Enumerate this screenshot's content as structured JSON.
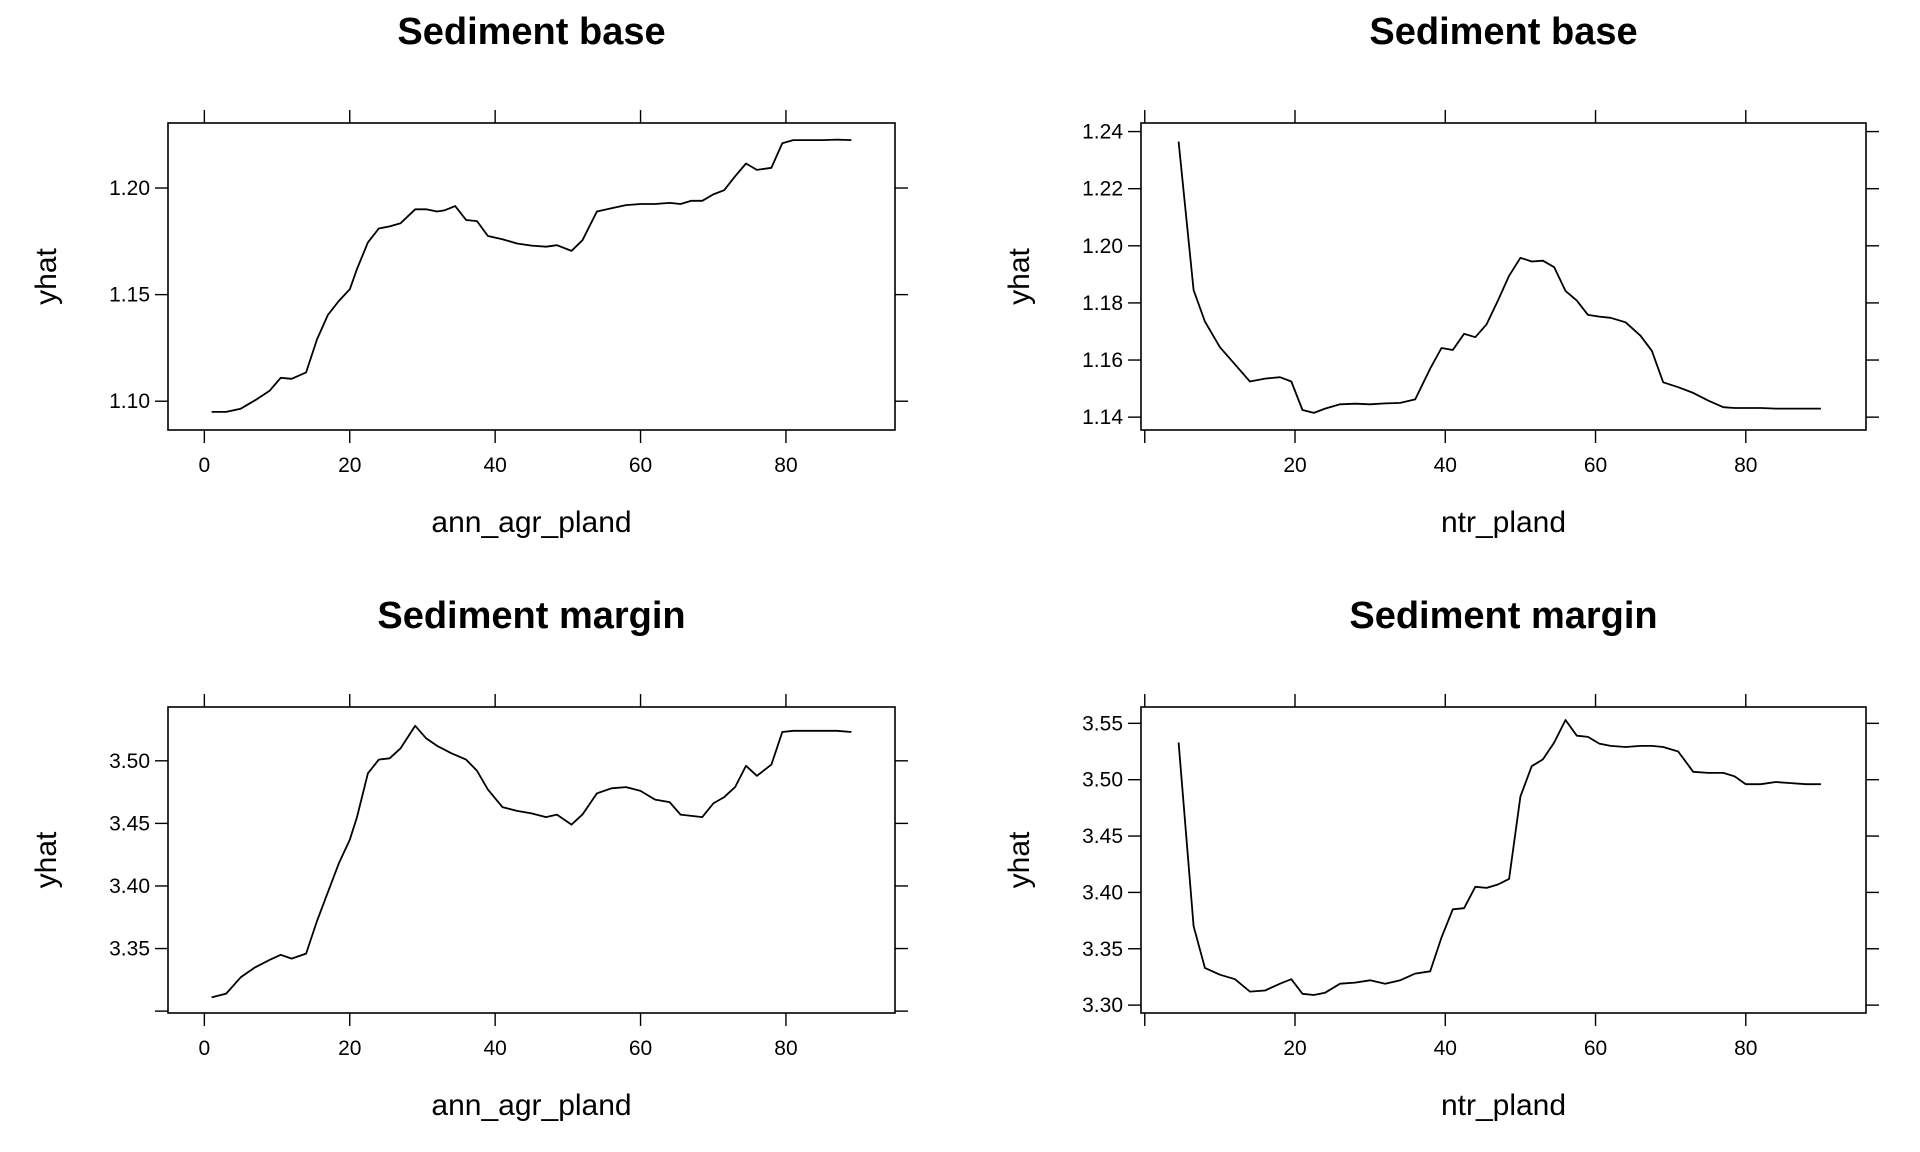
{
  "chart_data": [
    {
      "type": "line",
      "title": "Sediment base",
      "xlabel": "ann_agr_pland",
      "ylabel": "yhat",
      "xlim": [
        -5,
        95
      ],
      "ylim": [
        1.0865,
        1.2305
      ],
      "xticks": [
        0,
        20,
        40,
        60,
        80
      ],
      "xtick_labels": [
        "0",
        "20",
        "40",
        "60",
        "80"
      ],
      "yticks": [
        1.1,
        1.15,
        1.2
      ],
      "ytick_labels": [
        "1.10",
        "1.15",
        "1.20"
      ],
      "grid": false,
      "x": [
        1,
        3,
        5,
        7,
        9,
        10.5,
        12,
        14,
        15.5,
        17,
        18.5,
        20,
        21,
        22.5,
        24,
        25.5,
        27,
        29,
        30.5,
        32,
        33,
        34.5,
        36,
        37.5,
        39,
        41,
        43,
        45,
        47,
        48.5,
        50.5,
        52,
        54,
        56,
        58,
        60,
        62,
        64,
        65.5,
        67,
        68.5,
        70,
        71.5,
        73,
        74.5,
        76,
        78,
        79.5,
        81,
        83,
        85,
        87,
        89
      ],
      "y": [
        1.095,
        1.095,
        1.0965,
        1.1005,
        1.105,
        1.111,
        1.1105,
        1.1135,
        1.129,
        1.1405,
        1.147,
        1.1525,
        1.162,
        1.1745,
        1.181,
        1.182,
        1.1835,
        1.19,
        1.19,
        1.189,
        1.1895,
        1.1915,
        1.185,
        1.1845,
        1.1775,
        1.176,
        1.174,
        1.173,
        1.1725,
        1.1732,
        1.1705,
        1.1755,
        1.189,
        1.1905,
        1.192,
        1.1925,
        1.1925,
        1.193,
        1.1925,
        1.194,
        1.194,
        1.197,
        1.199,
        1.2055,
        1.2115,
        1.2085,
        1.2095,
        1.221,
        1.2225,
        1.2225,
        1.2225,
        1.2227,
        1.2225
      ]
    },
    {
      "type": "line",
      "title": "Sediment base",
      "xlabel": "ntr_pland",
      "ylabel": "yhat",
      "xlim": [
        -0.5,
        96
      ],
      "ylim": [
        1.1355,
        1.243
      ],
      "xticks": [
        20,
        40,
        60,
        80
      ],
      "xtick_labels": [
        "20",
        "40",
        "60",
        "80"
      ],
      "yticks": [
        1.14,
        1.16,
        1.18,
        1.2,
        1.22,
        1.24
      ],
      "ytick_labels": [
        "1.14",
        "1.16",
        "1.18",
        "1.20",
        "1.22",
        "1.24"
      ],
      "extra_ticks": [
        0
      ],
      "grid": false,
      "x": [
        4.5,
        6.5,
        8,
        10,
        12,
        14,
        16,
        18,
        19.5,
        21,
        22.5,
        24,
        26,
        28,
        30,
        32,
        34,
        36,
        38,
        39.5,
        41,
        42.5,
        44,
        45.5,
        47,
        48.5,
        50,
        51.5,
        53,
        54.5,
        56,
        57.5,
        59,
        60.5,
        62,
        64,
        66,
        67.5,
        69,
        71,
        73,
        75,
        77,
        78.5,
        80,
        82,
        84,
        86,
        88,
        90
      ],
      "y": [
        1.2365,
        1.1845,
        1.1735,
        1.1645,
        1.1585,
        1.1525,
        1.1535,
        1.154,
        1.1525,
        1.1425,
        1.1415,
        1.143,
        1.1445,
        1.1447,
        1.1445,
        1.1448,
        1.145,
        1.1462,
        1.157,
        1.1642,
        1.1635,
        1.1692,
        1.168,
        1.1725,
        1.1808,
        1.1895,
        1.1958,
        1.1945,
        1.1948,
        1.1925,
        1.1842,
        1.1808,
        1.1758,
        1.1752,
        1.1748,
        1.1732,
        1.1685,
        1.1632,
        1.1522,
        1.1505,
        1.1485,
        1.1458,
        1.1435,
        1.1432,
        1.1432,
        1.1432,
        1.143,
        1.143,
        1.143,
        1.143
      ]
    },
    {
      "type": "line",
      "title": "Sediment margin",
      "xlabel": "ann_agr_pland",
      "ylabel": "yhat",
      "xlim": [
        -5,
        95
      ],
      "ylim": [
        3.2985,
        3.543
      ],
      "xticks": [
        0,
        20,
        40,
        60,
        80
      ],
      "xtick_labels": [
        "0",
        "20",
        "40",
        "60",
        "80"
      ],
      "yticks": [
        3.35,
        3.4,
        3.45,
        3.5
      ],
      "ytick_labels": [
        "3.35",
        "3.40",
        "3.45",
        "3.50"
      ],
      "extra_ticks": [
        3.3
      ],
      "grid": false,
      "x": [
        1,
        3,
        5,
        7,
        9,
        10.5,
        12,
        14,
        15.5,
        17,
        18.5,
        20,
        21,
        22.5,
        24,
        25.5,
        27,
        29,
        30.5,
        32,
        34,
        36,
        37.5,
        39,
        41,
        43,
        45,
        47,
        48.5,
        50.5,
        52,
        54,
        56,
        58,
        60,
        62,
        64,
        65.5,
        67,
        68.5,
        70,
        71.5,
        73,
        74.5,
        76,
        78,
        79.5,
        81,
        83,
        85,
        87,
        89
      ],
      "y": [
        3.311,
        3.314,
        3.327,
        3.335,
        3.341,
        3.345,
        3.342,
        3.346,
        3.372,
        3.395,
        3.418,
        3.437,
        3.455,
        3.49,
        3.501,
        3.502,
        3.51,
        3.528,
        3.518,
        3.512,
        3.506,
        3.501,
        3.492,
        3.477,
        3.463,
        3.46,
        3.458,
        3.455,
        3.457,
        3.449,
        3.457,
        3.474,
        3.478,
        3.479,
        3.476,
        3.469,
        3.467,
        3.457,
        3.456,
        3.455,
        3.466,
        3.471,
        3.479,
        3.496,
        3.488,
        3.497,
        3.523,
        3.524,
        3.524,
        3.524,
        3.524,
        3.523
      ]
    },
    {
      "type": "line",
      "title": "Sediment margin",
      "xlabel": "ntr_pland",
      "ylabel": "yhat",
      "xlim": [
        -0.5,
        96
      ],
      "ylim": [
        3.293,
        3.5645
      ],
      "xticks": [
        20,
        40,
        60,
        80
      ],
      "xtick_labels": [
        "20",
        "40",
        "60",
        "80"
      ],
      "yticks": [
        3.3,
        3.35,
        3.4,
        3.45,
        3.5,
        3.55
      ],
      "ytick_labels": [
        "3.30",
        "3.35",
        "3.40",
        "3.45",
        "3.50",
        "3.55"
      ],
      "extra_ticks": [
        0
      ],
      "grid": false,
      "x": [
        4.5,
        6.5,
        8,
        10,
        12,
        14,
        16,
        18,
        19.5,
        21,
        22.5,
        24,
        26,
        28,
        30,
        32,
        34,
        36,
        38,
        39.5,
        41,
        42.5,
        44,
        45.5,
        47,
        48.5,
        50,
        51.5,
        53,
        54.5,
        56,
        57.5,
        59,
        60.5,
        62,
        64,
        66,
        67.5,
        69,
        71,
        73,
        75,
        77,
        78.5,
        80,
        82,
        84,
        86,
        88,
        90
      ],
      "y": [
        3.533,
        3.37,
        3.333,
        3.327,
        3.323,
        3.312,
        3.313,
        3.319,
        3.323,
        3.31,
        3.309,
        3.311,
        3.319,
        3.32,
        3.322,
        3.319,
        3.322,
        3.328,
        3.33,
        3.36,
        3.385,
        3.386,
        3.405,
        3.404,
        3.407,
        3.412,
        3.485,
        3.512,
        3.518,
        3.533,
        3.553,
        3.539,
        3.538,
        3.532,
        3.53,
        3.529,
        3.53,
        3.53,
        3.529,
        3.525,
        3.507,
        3.506,
        3.506,
        3.503,
        3.496,
        3.496,
        3.498,
        3.497,
        3.496,
        3.496
      ]
    }
  ]
}
